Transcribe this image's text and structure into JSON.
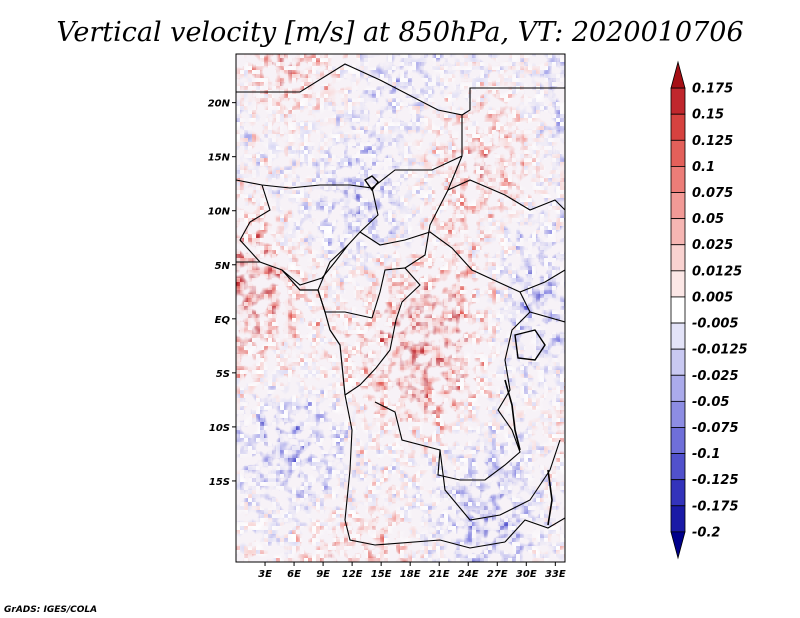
{
  "chart_data": {
    "type": "heatmap",
    "title": "Vertical velocity [m/s] at 850hPa, VT: 2020010706",
    "variable": "Vertical velocity",
    "units": "m/s",
    "level": "850hPa",
    "valid_time": "2020010706",
    "lon_range": [
      0,
      34
    ],
    "lat_range": [
      -22.5,
      24.5
    ],
    "x_ticks": [
      {
        "value": 3,
        "label": "3E"
      },
      {
        "value": 6,
        "label": "6E"
      },
      {
        "value": 9,
        "label": "9E"
      },
      {
        "value": 12,
        "label": "12E"
      },
      {
        "value": 15,
        "label": "15E"
      },
      {
        "value": 18,
        "label": "18E"
      },
      {
        "value": 21,
        "label": "21E"
      },
      {
        "value": 24,
        "label": "24E"
      },
      {
        "value": 27,
        "label": "27E"
      },
      {
        "value": 30,
        "label": "30E"
      },
      {
        "value": 33,
        "label": "33E"
      }
    ],
    "y_ticks": [
      {
        "value": 20,
        "label": "20N"
      },
      {
        "value": 15,
        "label": "15N"
      },
      {
        "value": 10,
        "label": "10N"
      },
      {
        "value": 5,
        "label": "5N"
      },
      {
        "value": 0,
        "label": "EQ"
      },
      {
        "value": -5,
        "label": "5S"
      },
      {
        "value": -10,
        "label": "10S"
      },
      {
        "value": -15,
        "label": "15S"
      }
    ],
    "colorbar": {
      "labels": [
        "0.175",
        "0.15",
        "0.125",
        "0.1",
        "0.075",
        "0.05",
        "0.025",
        "0.0125",
        "0.005",
        "-0.005",
        "-0.0125",
        "-0.025",
        "-0.05",
        "-0.075",
        "-0.1",
        "-0.125",
        "-0.175",
        "-0.2"
      ],
      "colors": [
        "#a50f15",
        "#c0272d",
        "#d6423f",
        "#e3605a",
        "#ec7d78",
        "#f29a96",
        "#f6b6b3",
        "#f9d2d0",
        "#fce7e6",
        "#ffffff",
        "#e3e3f8",
        "#c9c9f2",
        "#ababeb",
        "#8d8de3",
        "#6f6fd9",
        "#5151cc",
        "#3333bb",
        "#1a1aa6",
        "#00008b"
      ]
    },
    "credit": "GrADS: IGES/COLA"
  }
}
